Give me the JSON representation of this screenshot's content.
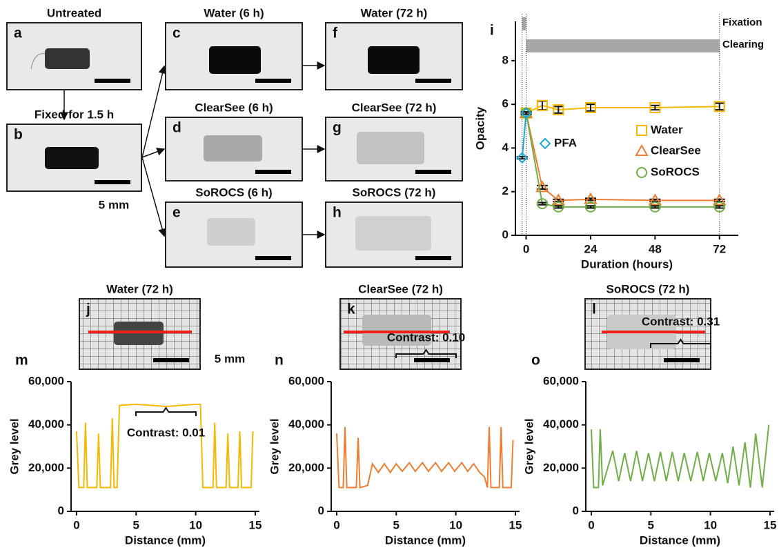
{
  "panels": [
    {
      "letter": "a",
      "title": "Untreated"
    },
    {
      "letter": "b",
      "title": "Fixed for 1.5 h",
      "scale": "5 mm"
    },
    {
      "letter": "c",
      "title": "Water (6 h)"
    },
    {
      "letter": "d",
      "title": "ClearSee (6 h)"
    },
    {
      "letter": "e",
      "title": "SoROCS (6 h)"
    },
    {
      "letter": "f",
      "title": "Water (72 h)"
    },
    {
      "letter": "g",
      "title": "ClearSee (72 h)"
    },
    {
      "letter": "h",
      "title": "SoROCS (72 h)"
    },
    {
      "letter": "j",
      "title": "Water (72 h)",
      "scale": "5 mm"
    },
    {
      "letter": "k",
      "title": "ClearSee (72 h)"
    },
    {
      "letter": "l",
      "title": "SoROCS (72 h)"
    }
  ],
  "chart_data": [
    {
      "type": "line",
      "panel": "i",
      "x_label": "Duration (hours)",
      "y_label": "Opacity",
      "xlim": [
        -4,
        79
      ],
      "xticks": [
        0,
        24,
        48,
        72
      ],
      "ylim": [
        0,
        9.8
      ],
      "yticks": [
        0,
        2,
        4,
        6,
        8
      ],
      "legend": "center right",
      "phases": [
        {
          "label": "Fixation",
          "start": -1.5,
          "end": 0
        },
        {
          "label": "Clearing",
          "start": 0,
          "end": 72
        }
      ],
      "series": [
        {
          "name": "Water",
          "color": "#f5b800",
          "marker": "square",
          "x": [
            0,
            6,
            12,
            24,
            48,
            72
          ],
          "values": [
            5.6,
            5.95,
            5.75,
            5.85,
            5.85,
            5.9
          ],
          "errors": [
            0.05,
            0.2,
            0.15,
            0.15,
            0.1,
            0.15
          ]
        },
        {
          "name": "ClearSee",
          "color": "#ee7d31",
          "marker": "triangle",
          "x": [
            0,
            6,
            12,
            24,
            48,
            72
          ],
          "values": [
            5.6,
            2.2,
            1.6,
            1.65,
            1.6,
            1.6
          ],
          "errors": [
            0.05,
            0.08,
            0.05,
            0.05,
            0.05,
            0.05
          ]
        },
        {
          "name": "SoROCS",
          "color": "#70ad47",
          "marker": "circle",
          "x": [
            0,
            6,
            12,
            24,
            48,
            72
          ],
          "values": [
            5.6,
            1.45,
            1.3,
            1.3,
            1.3,
            1.3
          ],
          "errors": [
            0.05,
            0.05,
            0.05,
            0.05,
            0.05,
            0.05
          ]
        },
        {
          "name": "PFA",
          "color": "#1fa9d9",
          "marker": "diamond",
          "x": [
            -1.5,
            0
          ],
          "values": [
            3.55,
            5.6
          ],
          "errors": [
            0.05,
            0.05
          ]
        }
      ]
    },
    {
      "type": "line",
      "panel": "m",
      "x_label": "Distance (mm)",
      "y_label": "Grey level",
      "annotation": "Contrast: 0.01",
      "xlim": [
        -0.46,
        15.35
      ],
      "xticks": [
        0,
        5,
        10,
        15
      ],
      "ylim": [
        0,
        60000
      ],
      "yticks": [
        0,
        {
          "value": 20000,
          "label": "20,000"
        },
        {
          "value": 40000,
          "label": "40,000"
        },
        {
          "value": 60000,
          "label": "60,000"
        }
      ],
      "series": [
        {
          "color": "#f5b800",
          "x": [
            0,
            0.2,
            0.6,
            0.75,
            0.9,
            1.7,
            1.85,
            2.0,
            2.85,
            3.0,
            3.15,
            3.4,
            3.6,
            5,
            7.5,
            10,
            10.4,
            10.6,
            11.45,
            11.6,
            11.75,
            12.55,
            12.7,
            12.85,
            13.55,
            13.7,
            13.85,
            14.65,
            14.8
          ],
          "values": [
            37000,
            11000,
            11000,
            41000,
            11000,
            11000,
            36000,
            11000,
            11000,
            43000,
            11000,
            11000,
            49000,
            49500,
            48500,
            49500,
            49500,
            11000,
            11000,
            41000,
            11000,
            11000,
            36000,
            11000,
            11000,
            37000,
            11000,
            11000,
            37000
          ]
        }
      ]
    },
    {
      "type": "line",
      "panel": "n",
      "x_label": "Distance (mm)",
      "y_label": "Grey level",
      "annotation": "Contrast: 0.10",
      "xlim": [
        -0.46,
        15.35
      ],
      "xticks": [
        0,
        5,
        10,
        15
      ],
      "ylim": [
        0,
        60000
      ],
      "yticks": [
        0,
        {
          "value": 20000,
          "label": "20,000"
        },
        {
          "value": 40000,
          "label": "40,000"
        },
        {
          "value": 60000,
          "label": "60,000"
        }
      ],
      "series": [
        {
          "color": "#ee7d31",
          "x": [
            0,
            0.2,
            0.55,
            0.7,
            0.85,
            1.65,
            1.8,
            1.95,
            2.6,
            3.0,
            3.5,
            4.0,
            4.5,
            5.0,
            5.5,
            6.1,
            6.6,
            7.2,
            7.7,
            8.3,
            8.8,
            9.4,
            9.9,
            10.5,
            11.0,
            11.5,
            12.0,
            12.4,
            12.65,
            12.8,
            12.95,
            13.65,
            13.8,
            13.95,
            14.65,
            14.8
          ],
          "values": [
            36000,
            11000,
            11000,
            39000,
            11000,
            11000,
            34000,
            11000,
            12000,
            22000,
            18000,
            22000,
            18000,
            22000,
            18500,
            22500,
            18500,
            22500,
            18500,
            22500,
            18500,
            22500,
            18500,
            22500,
            18500,
            22000,
            18000,
            16000,
            11000,
            39000,
            11000,
            11000,
            39000,
            11000,
            11000,
            33000
          ]
        }
      ]
    },
    {
      "type": "line",
      "panel": "o",
      "x_label": "Distance (mm)",
      "y_label": "Grey level",
      "annotation": "Contrast: 0.31",
      "xlim": [
        -0.46,
        15.35
      ],
      "xticks": [
        0,
        5,
        10,
        15
      ],
      "ylim": [
        0,
        60000
      ],
      "yticks": [
        0,
        {
          "value": 20000,
          "label": "20,000"
        },
        {
          "value": 40000,
          "label": "40,000"
        },
        {
          "value": 60000,
          "label": "60,000"
        }
      ],
      "series": [
        {
          "color": "#70ad47",
          "x": [
            0,
            0.2,
            0.6,
            0.75,
            0.95,
            1.8,
            2.3,
            2.8,
            3.3,
            3.8,
            4.3,
            4.8,
            5.3,
            5.8,
            6.3,
            6.8,
            7.3,
            7.8,
            8.35,
            8.9,
            9.4,
            9.9,
            10.45,
            11.0,
            11.45,
            11.9,
            12.4,
            12.9,
            13.35,
            13.8,
            14.35,
            14.9
          ],
          "values": [
            38000,
            11000,
            11000,
            38000,
            12000,
            28000,
            14000,
            27000,
            14000,
            28000,
            14000,
            27000,
            14000,
            27500,
            14000,
            27500,
            14000,
            27000,
            14000,
            27500,
            14000,
            27000,
            14000,
            27000,
            13000,
            30000,
            12000,
            32000,
            11000,
            36000,
            11000,
            40000
          ]
        }
      ]
    }
  ]
}
